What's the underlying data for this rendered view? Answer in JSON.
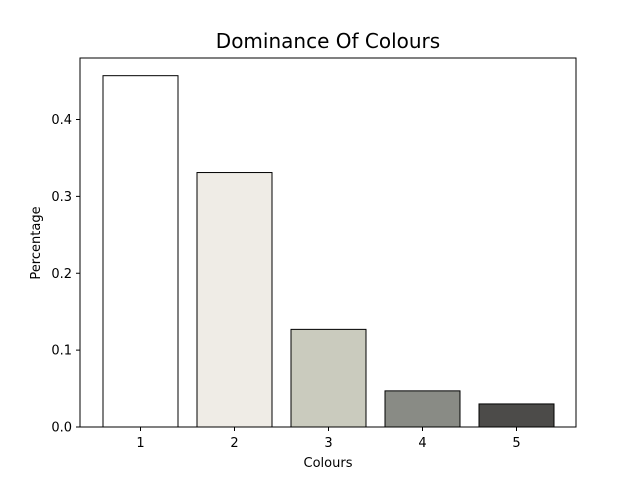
{
  "chart_data": {
    "type": "bar",
    "title": "Dominance Of Colours",
    "xlabel": "Colours",
    "ylabel": "Percentage",
    "categories": [
      "1",
      "2",
      "3",
      "4",
      "5"
    ],
    "values": [
      0.457,
      0.331,
      0.127,
      0.047,
      0.03
    ],
    "colors": [
      "#ffffff",
      "#efece6",
      "#cacbbe",
      "#898b85",
      "#4c4b49"
    ],
    "edge_color": "#000000",
    "ylim": [
      0,
      0.48
    ],
    "yticks": [
      0.0,
      0.1,
      0.2,
      0.3,
      0.4
    ],
    "ytick_labels": [
      "0.0",
      "0.1",
      "0.2",
      "0.3",
      "0.4"
    ],
    "grid": false,
    "legend": "none"
  }
}
